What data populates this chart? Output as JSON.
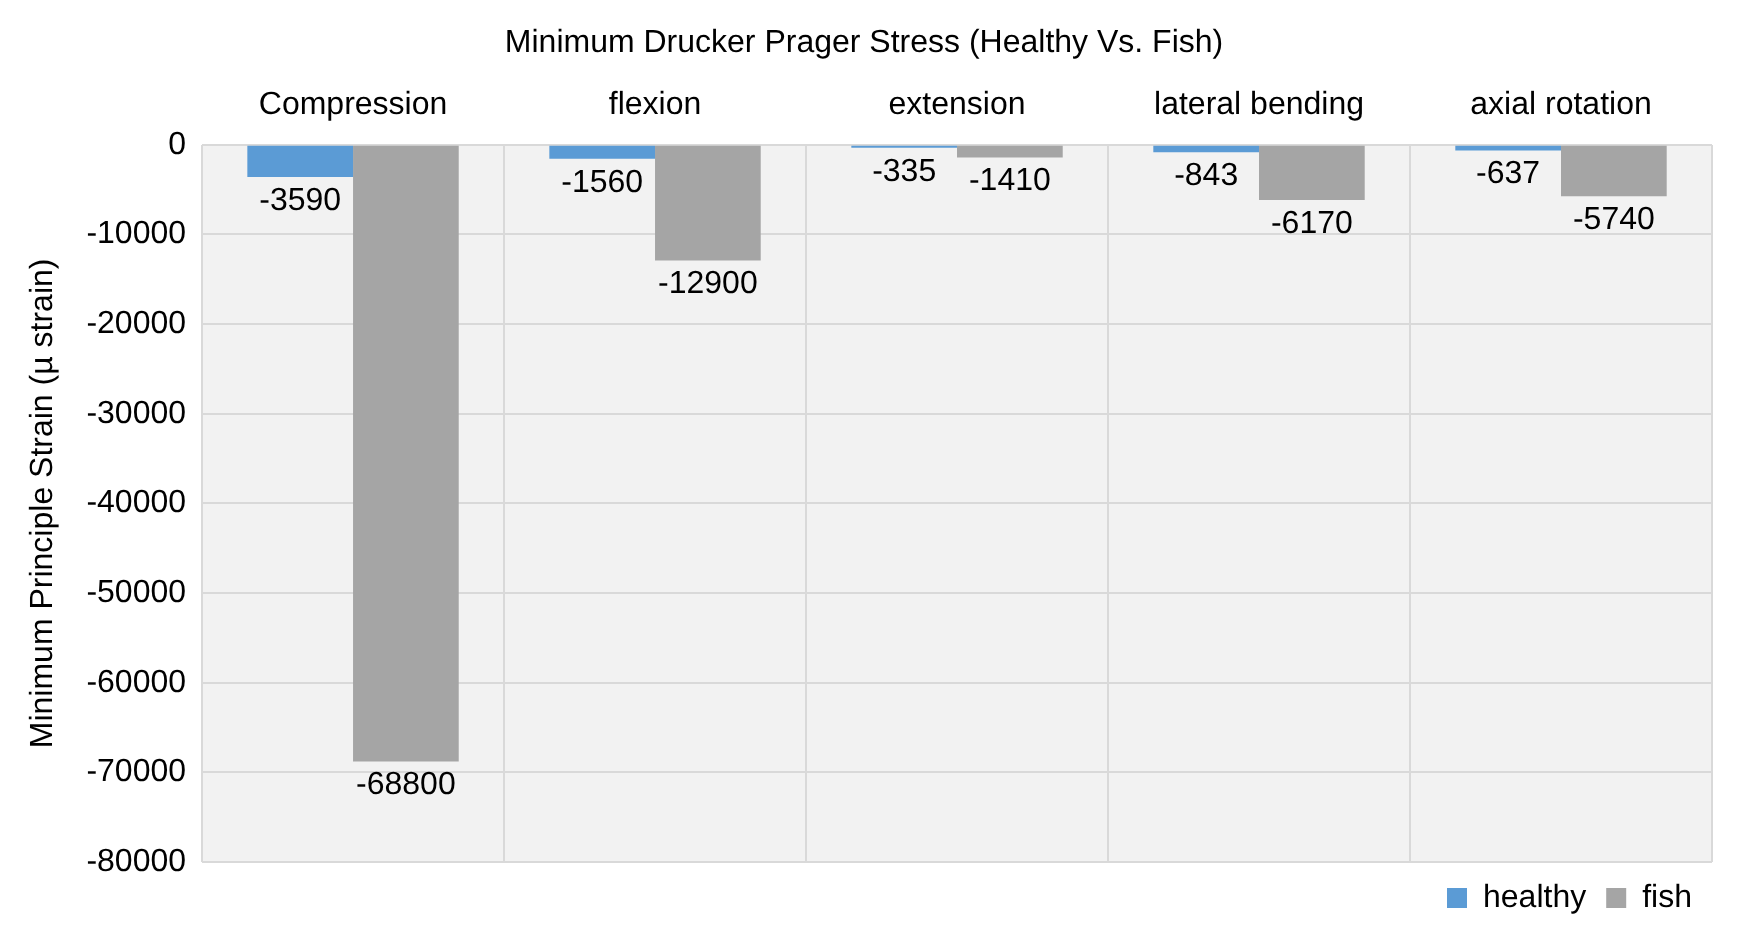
{
  "chart_data": {
    "type": "bar",
    "title": "Minimum Drucker Prager Stress (Healthy Vs. Fish)",
    "ylabel": "Minimum Principle Strain (µ strain)",
    "categories": [
      "Compression",
      "flexion",
      "extension",
      "lateral bending",
      "axial rotation"
    ],
    "series": [
      {
        "name": "healthy",
        "color": "#5b9bd5",
        "values": [
          -3590,
          -1560,
          -335,
          -843,
          -637
        ]
      },
      {
        "name": "fish",
        "color": "#a5a5a5",
        "values": [
          -68800,
          -12900,
          -1410,
          -6170,
          -5740
        ]
      }
    ],
    "ylim": [
      -80000,
      0
    ],
    "yticks": [
      -80000,
      -70000,
      -60000,
      -50000,
      -40000,
      -30000,
      -20000,
      -10000,
      0
    ],
    "grid": true,
    "legend": "bottom right",
    "data_labels": true
  }
}
